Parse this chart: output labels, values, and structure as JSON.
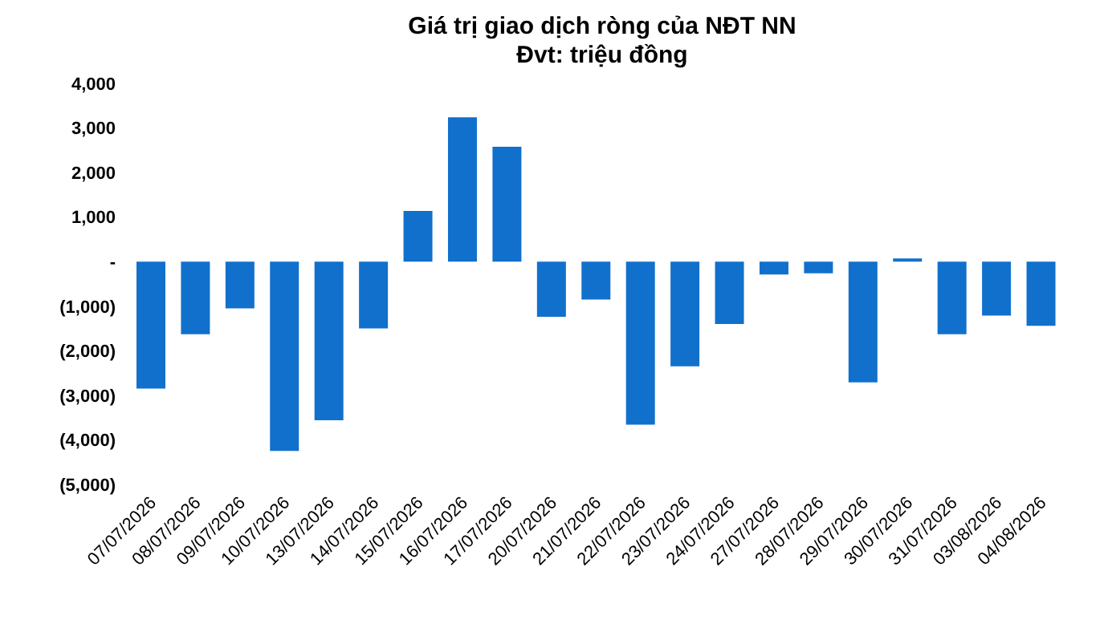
{
  "chart_data": {
    "type": "bar",
    "title": "Giá trị giao dịch ròng của NĐT NN",
    "subtitle": "Đvt: triệu đồng",
    "categories": [
      "07/07/2026",
      "08/07/2026",
      "09/07/2026",
      "10/07/2026",
      "13/07/2026",
      "14/07/2026",
      "15/07/2026",
      "16/07/2026",
      "17/07/2026",
      "20/07/2026",
      "21/07/2026",
      "22/07/2026",
      "23/07/2026",
      "24/07/2026",
      "27/07/2026",
      "28/07/2026",
      "29/07/2026",
      "30/07/2026",
      "31/07/2026",
      "03/08/2026",
      "04/08/2026"
    ],
    "values": [
      -2850,
      -1630,
      -1050,
      -4250,
      -3560,
      -1500,
      1140,
      3240,
      2580,
      -1240,
      -850,
      -3660,
      -2350,
      -1400,
      -290,
      -260,
      -2710,
      70,
      -1630,
      -1210,
      -1440
    ],
    "color": "#1170cc",
    "ylim": [
      -5000,
      4000
    ],
    "yticks": [
      {
        "value": 4000,
        "label": "4,000"
      },
      {
        "value": 3000,
        "label": "3,000"
      },
      {
        "value": 2000,
        "label": "2,000"
      },
      {
        "value": 1000,
        "label": "1,000"
      },
      {
        "value": 0,
        "label": "-"
      },
      {
        "value": -1000,
        "label": "(1,000)"
      },
      {
        "value": -2000,
        "label": "(2,000)"
      },
      {
        "value": -3000,
        "label": "(3,000)"
      },
      {
        "value": -4000,
        "label": "(4,000)"
      },
      {
        "value": -5000,
        "label": "(5,000)"
      }
    ],
    "grid": false,
    "legend": false
  }
}
